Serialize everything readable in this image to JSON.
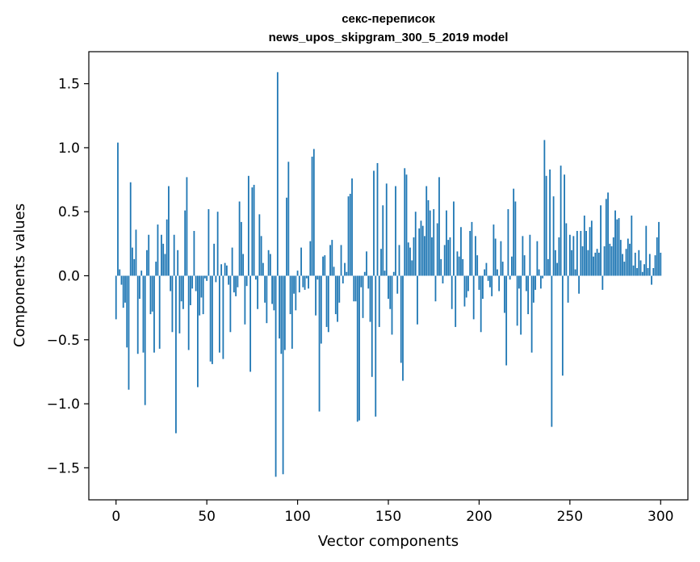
{
  "chart_data": {
    "type": "bar",
    "title": "секс-переписок",
    "subtitle": "news_upos_skipgram_300_5_2019 model",
    "xlabel": "Vector components",
    "ylabel": "Components values",
    "xlim": [
      -15,
      315
    ],
    "ylim": [
      -1.75,
      1.75
    ],
    "xticks": [
      0,
      50,
      100,
      150,
      200,
      250,
      300
    ],
    "yticks": [
      -1.5,
      -1.0,
      -0.5,
      0.0,
      0.5,
      1.0,
      1.5
    ],
    "ytick_labels": [
      "−1.5",
      "−1.0",
      "−0.5",
      "0.0",
      "0.5",
      "1.0",
      "1.5"
    ],
    "bar_color": "#1f77b4",
    "x": "0..299",
    "values": [
      -0.34,
      1.04,
      0.05,
      -0.07,
      -0.25,
      -0.21,
      -0.56,
      -0.89,
      0.73,
      0.22,
      0.13,
      0.36,
      -0.61,
      -0.18,
      0.04,
      -0.6,
      -1.01,
      0.2,
      0.32,
      -0.3,
      -0.28,
      -0.6,
      0.11,
      0.4,
      -0.57,
      0.32,
      0.25,
      0.17,
      0.44,
      0.7,
      -0.12,
      -0.44,
      0.32,
      -1.23,
      0.2,
      -0.45,
      -0.2,
      -0.26,
      0.51,
      0.77,
      -0.58,
      -0.23,
      -0.1,
      0.35,
      -0.12,
      -0.87,
      -0.31,
      -0.17,
      -0.3,
      -0.02,
      -0.04,
      0.52,
      -0.67,
      -0.69,
      0.25,
      -0.05,
      0.5,
      -0.6,
      0.09,
      -0.65,
      0.1,
      0.08,
      -0.07,
      -0.44,
      0.22,
      -0.13,
      -0.16,
      -0.09,
      0.58,
      0.42,
      0.17,
      -0.38,
      -0.08,
      0.78,
      -0.75,
      0.69,
      0.71,
      -0.03,
      -0.26,
      0.48,
      0.31,
      0.1,
      -0.21,
      -0.37,
      0.2,
      0.17,
      -0.22,
      -0.27,
      -1.57,
      1.59,
      -0.49,
      -0.61,
      -1.55,
      -0.58,
      0.61,
      0.89,
      -0.3,
      -0.57,
      -0.14,
      -0.27,
      0.04,
      -0.13,
      0.22,
      -0.09,
      -0.11,
      -0.02,
      -0.1,
      0.27,
      0.93,
      0.99,
      -0.31,
      -0.03,
      -1.06,
      -0.53,
      0.15,
      0.16,
      -0.4,
      -0.44,
      0.24,
      0.28,
      0.07,
      -0.3,
      -0.36,
      -0.21,
      0.24,
      -0.06,
      0.1,
      0.03,
      0.62,
      0.64,
      0.76,
      -0.2,
      -0.2,
      -1.14,
      -1.13,
      -0.09,
      -0.33,
      0.03,
      0.19,
      -0.1,
      -0.36,
      -0.79,
      0.82,
      -1.1,
      0.88,
      -0.4,
      0.21,
      0.55,
      0.04,
      0.72,
      -0.18,
      -0.26,
      -0.46,
      0.03,
      0.7,
      -0.14,
      0.24,
      -0.68,
      -0.82,
      0.84,
      0.79,
      0.26,
      0.22,
      0.12,
      0.3,
      0.5,
      -0.38,
      0.37,
      0.43,
      0.39,
      0.31,
      0.7,
      0.59,
      0.51,
      0.3,
      0.52,
      -0.2,
      0.41,
      0.77,
      0.13,
      -0.06,
      0.24,
      0.51,
      0.28,
      0.3,
      -0.26,
      0.58,
      -0.4,
      0.19,
      0.15,
      0.38,
      0.13,
      -0.24,
      -0.17,
      -0.12,
      0.35,
      0.42,
      -0.34,
      0.31,
      0.16,
      -0.11,
      -0.44,
      -0.18,
      0.05,
      0.1,
      -0.04,
      -0.09,
      -0.16,
      0.4,
      0.29,
      0.05,
      -0.12,
      0.27,
      0.11,
      -0.29,
      -0.7,
      0.52,
      -0.03,
      0.15,
      0.68,
      0.58,
      -0.39,
      -0.1,
      -0.46,
      0.31,
      0.16,
      -0.12,
      -0.3,
      0.32,
      -0.6,
      -0.21,
      -0.11,
      0.27,
      0.05,
      -0.1,
      -0.02,
      1.06,
      0.78,
      0.13,
      0.83,
      -1.18,
      0.62,
      0.2,
      0.1,
      0.3,
      0.86,
      -0.78,
      0.79,
      0.41,
      -0.21,
      0.32,
      0.2,
      0.31,
      0.05,
      0.35,
      -0.14,
      0.35,
      0.23,
      0.47,
      0.35,
      0.2,
      0.38,
      0.43,
      0.15,
      0.18,
      0.21,
      0.18,
      0.55,
      -0.11,
      0.23,
      0.6,
      0.65,
      0.25,
      0.23,
      0.3,
      0.51,
      0.44,
      0.45,
      0.28,
      0.17,
      0.11,
      0.21,
      0.29,
      0.25,
      0.47,
      0.08,
      0.18,
      0.06,
      0.2,
      0.12,
      0.03,
      0.09,
      0.39,
      0.06,
      0.17,
      -0.07,
      0.06,
      0.16,
      0.3,
      0.42,
      0.18
    ]
  }
}
